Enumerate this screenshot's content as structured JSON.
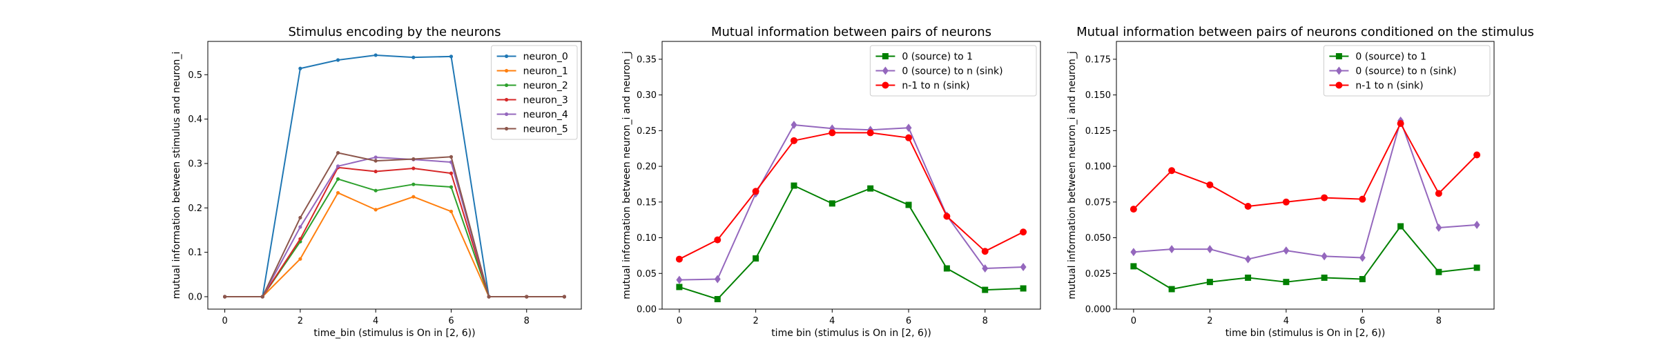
{
  "chart_data": [
    {
      "type": "line",
      "title": "Stimulus encoding by the neurons",
      "xlabel": "time_bin (stimulus is On in [2, 6))",
      "ylabel": "mutual information between stimulus and neuron_i",
      "x": [
        0,
        1,
        2,
        3,
        4,
        5,
        6,
        7,
        8,
        9
      ],
      "xlim": [
        -0.45,
        9.45
      ],
      "ylim": [
        -0.028,
        0.575
      ],
      "xticks": [
        0,
        2,
        4,
        6,
        8
      ],
      "xtick_labels": [
        "0",
        "2",
        "4",
        "6",
        "8"
      ],
      "yticks": [
        0.0,
        0.1,
        0.2,
        0.3,
        0.4,
        0.5
      ],
      "ytick_labels": [
        "0.0",
        "0.1",
        "0.2",
        "0.3",
        "0.4",
        "0.5"
      ],
      "legend_position": "top-right",
      "grid": false,
      "series": [
        {
          "name": "neuron_0",
          "color": "#1f77b4",
          "marker": "dot",
          "values": [
            0,
            0,
            0.514,
            0.533,
            0.544,
            0.539,
            0.541,
            0,
            0,
            0
          ]
        },
        {
          "name": "neuron_1",
          "color": "#ff7f0e",
          "marker": "dot",
          "values": [
            0,
            0,
            0.085,
            0.234,
            0.196,
            0.225,
            0.192,
            0,
            0,
            0
          ]
        },
        {
          "name": "neuron_2",
          "color": "#2ca02c",
          "marker": "dot",
          "values": [
            0,
            0,
            0.124,
            0.265,
            0.239,
            0.253,
            0.247,
            0,
            0,
            0
          ]
        },
        {
          "name": "neuron_3",
          "color": "#d62728",
          "marker": "dot",
          "values": [
            0,
            0,
            0.13,
            0.291,
            0.282,
            0.289,
            0.278,
            0,
            0,
            0
          ]
        },
        {
          "name": "neuron_4",
          "color": "#9467bd",
          "marker": "dot",
          "values": [
            0,
            0,
            0.157,
            0.294,
            0.314,
            0.309,
            0.303,
            0,
            0,
            0
          ]
        },
        {
          "name": "neuron_5",
          "color": "#8c564b",
          "marker": "dot",
          "values": [
            0,
            0,
            0.178,
            0.324,
            0.306,
            0.31,
            0.315,
            0,
            0,
            0
          ]
        }
      ]
    },
    {
      "type": "line",
      "title": "Mutual information between pairs of neurons",
      "xlabel": "time bin (stimulus is On in [2, 6))",
      "ylabel": "mutual information between neuron_i and neuron_j",
      "x": [
        0,
        1,
        2,
        3,
        4,
        5,
        6,
        7,
        8,
        9
      ],
      "xlim": [
        -0.45,
        9.45
      ],
      "ylim": [
        0,
        0.375
      ],
      "xticks": [
        0,
        2,
        4,
        6,
        8
      ],
      "xtick_labels": [
        "0",
        "2",
        "4",
        "6",
        "8"
      ],
      "yticks": [
        0.0,
        0.05,
        0.1,
        0.15,
        0.2,
        0.25,
        0.3,
        0.35
      ],
      "ytick_labels": [
        "0.00",
        "0.05",
        "0.10",
        "0.15",
        "0.20",
        "0.25",
        "0.30",
        "0.35"
      ],
      "legend_position": "top-right",
      "grid": false,
      "series": [
        {
          "name": "0 (source) to 1",
          "color": "#008000",
          "marker": "square",
          "values": [
            0.031,
            0.014,
            0.071,
            0.173,
            0.148,
            0.169,
            0.146,
            0.057,
            0.027,
            0.029
          ]
        },
        {
          "name": "0 (source) to n (sink)",
          "color": "#9467bd",
          "marker": "diamond",
          "values": [
            0.041,
            0.042,
            0.162,
            0.258,
            0.253,
            0.251,
            0.254,
            0.131,
            0.057,
            0.059
          ]
        },
        {
          "name": "n-1 to n (sink)",
          "color": "#ff0000",
          "marker": "circle",
          "values": [
            0.07,
            0.097,
            0.165,
            0.236,
            0.247,
            0.247,
            0.24,
            0.13,
            0.081,
            0.108
          ]
        }
      ]
    },
    {
      "type": "line",
      "title": "Mutual information between pairs of neurons conditioned on the stimulus",
      "xlabel": "time bin (stimulus is On in [2, 6))",
      "ylabel": "mutual information between neuron_i and neuron_j",
      "x": [
        0,
        1,
        2,
        3,
        4,
        5,
        6,
        7,
        8,
        9
      ],
      "xlim": [
        -0.45,
        9.45
      ],
      "ylim": [
        0,
        0.1875
      ],
      "xticks": [
        0,
        2,
        4,
        6,
        8
      ],
      "xtick_labels": [
        "0",
        "2",
        "4",
        "6",
        "8"
      ],
      "yticks": [
        0.0,
        0.025,
        0.05,
        0.075,
        0.1,
        0.125,
        0.15,
        0.175
      ],
      "ytick_labels": [
        "0.000",
        "0.025",
        "0.050",
        "0.075",
        "0.100",
        "0.125",
        "0.150",
        "0.175"
      ],
      "legend_position": "top-right",
      "grid": false,
      "series": [
        {
          "name": "0 (source) to 1",
          "color": "#008000",
          "marker": "square",
          "values": [
            0.03,
            0.014,
            0.019,
            0.022,
            0.019,
            0.022,
            0.021,
            0.058,
            0.026,
            0.029
          ]
        },
        {
          "name": "0 (source) to n (sink)",
          "color": "#9467bd",
          "marker": "diamond",
          "values": [
            0.04,
            0.042,
            0.042,
            0.035,
            0.041,
            0.037,
            0.036,
            0.132,
            0.057,
            0.059
          ]
        },
        {
          "name": "n-1 to n (sink)",
          "color": "#ff0000",
          "marker": "circle",
          "values": [
            0.07,
            0.097,
            0.087,
            0.072,
            0.075,
            0.078,
            0.077,
            0.13,
            0.081,
            0.108
          ]
        }
      ]
    }
  ]
}
